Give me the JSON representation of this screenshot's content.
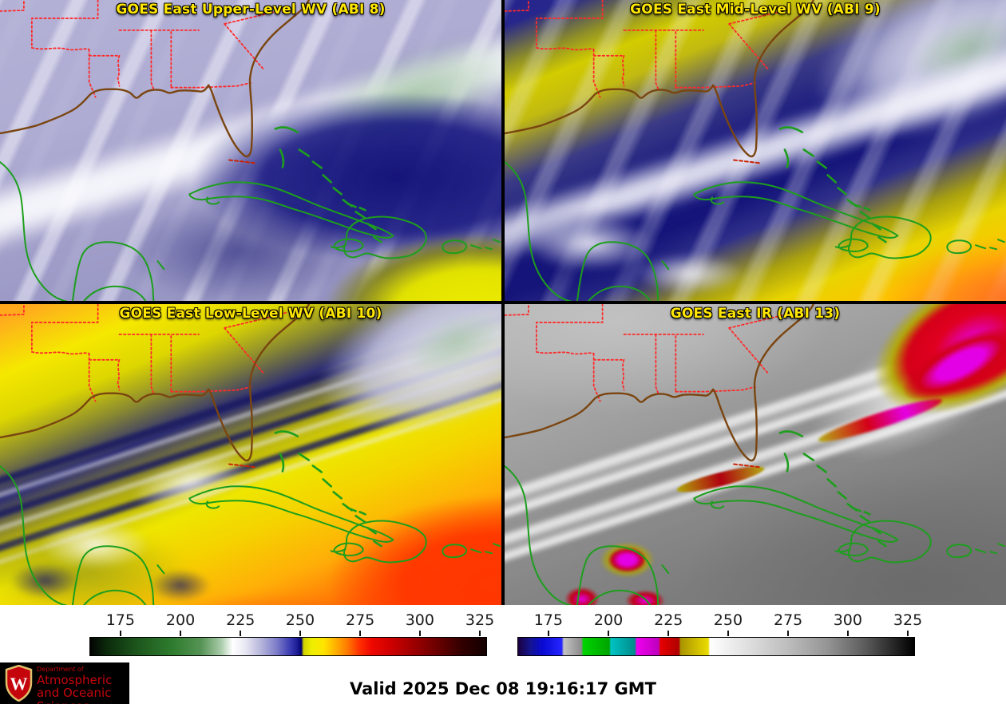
{
  "panels": [
    {
      "title": "GOES East Upper-Level WV (ABI 8)"
    },
    {
      "title": "GOES East Mid-Level WV (ABI 9)"
    },
    {
      "title": "GOES East Low-Level WV (ABI 10)"
    },
    {
      "title": "GOES East IR (ABI 13)"
    }
  ],
  "colorbars": [
    {
      "id": "wv",
      "tick_labels": [
        "175",
        "200",
        "225",
        "250",
        "275",
        "300",
        "325"
      ],
      "tick_pcts": [
        7.8,
        22.9,
        38.0,
        53.0,
        68.1,
        83.1,
        98.2
      ],
      "range_kelvin": [
        162,
        328
      ],
      "gradient": [
        {
          "pct": 0,
          "color": "#030303"
        },
        {
          "pct": 4,
          "color": "#0b290b"
        },
        {
          "pct": 12,
          "color": "#1d571d"
        },
        {
          "pct": 21,
          "color": "#2f7d2f"
        },
        {
          "pct": 28,
          "color": "#569356"
        },
        {
          "pct": 33,
          "color": "#a8cba8"
        },
        {
          "pct": 36,
          "color": "#ffffff"
        },
        {
          "pct": 39,
          "color": "#e9e9f4"
        },
        {
          "pct": 43,
          "color": "#b7b7dc"
        },
        {
          "pct": 47,
          "color": "#7e7eca"
        },
        {
          "pct": 50.5,
          "color": "#3b3bb3"
        },
        {
          "pct": 52.5,
          "color": "#17178f"
        },
        {
          "pct": 53.3,
          "color": "#00006b"
        },
        {
          "pct": 53.9,
          "color": "#d2d200"
        },
        {
          "pct": 56,
          "color": "#efef00"
        },
        {
          "pct": 59,
          "color": "#ffe400"
        },
        {
          "pct": 62,
          "color": "#ffb000"
        },
        {
          "pct": 65,
          "color": "#ff7800"
        },
        {
          "pct": 68,
          "color": "#ff3000"
        },
        {
          "pct": 71,
          "color": "#ef0800"
        },
        {
          "pct": 76,
          "color": "#cd0000"
        },
        {
          "pct": 82,
          "color": "#9b0000"
        },
        {
          "pct": 88,
          "color": "#670000"
        },
        {
          "pct": 94,
          "color": "#310000"
        },
        {
          "pct": 100,
          "color": "#130000"
        }
      ]
    },
    {
      "id": "ir",
      "tick_labels": [
        "175",
        "200",
        "225",
        "250",
        "275",
        "300",
        "325"
      ],
      "tick_pcts": [
        7.8,
        22.9,
        38.0,
        53.0,
        68.1,
        83.1,
        98.2
      ],
      "range_kelvin": [
        162,
        328
      ],
      "gradient": [
        {
          "pct": 0,
          "color": "#1b0040"
        },
        {
          "pct": 3,
          "color": "#15158d"
        },
        {
          "pct": 6,
          "color": "#0909d1"
        },
        {
          "pct": 11,
          "color": "#2525ff"
        },
        {
          "pct": 11.5,
          "color": "#c3c3c3"
        },
        {
          "pct": 16,
          "color": "#8b8b8b"
        },
        {
          "pct": 16.4,
          "color": "#00d400"
        },
        {
          "pct": 23,
          "color": "#00a500"
        },
        {
          "pct": 23.4,
          "color": "#00c3c3"
        },
        {
          "pct": 29.5,
          "color": "#008b8b"
        },
        {
          "pct": 29.9,
          "color": "#ef00ef"
        },
        {
          "pct": 35.5,
          "color": "#bd00bd"
        },
        {
          "pct": 35.9,
          "color": "#e70000"
        },
        {
          "pct": 40.6,
          "color": "#af0000"
        },
        {
          "pct": 41,
          "color": "#a99300"
        },
        {
          "pct": 48,
          "color": "#ebdc00"
        },
        {
          "pct": 48.4,
          "color": "#ffffff"
        },
        {
          "pct": 58,
          "color": "#dfdfdf"
        },
        {
          "pct": 68,
          "color": "#bdbdbd"
        },
        {
          "pct": 78,
          "color": "#959595"
        },
        {
          "pct": 88,
          "color": "#595959"
        },
        {
          "pct": 100,
          "color": "#000000"
        }
      ]
    }
  ],
  "footer": {
    "valid": "Valid 2025 Dec 08 19:16:17 GMT",
    "logo_lines": [
      "Department of",
      "Atmospheric",
      "and Oceanic Sciences"
    ],
    "logo_letter": "W"
  },
  "colors": {
    "title": "#ffe600",
    "state_border": "#ff2a2a",
    "us_coast": "#7a4510",
    "carib_coast": "#1d9e1d",
    "keys": "#cc2200",
    "logo_text": "#c5050c",
    "logo_bg": "#000000"
  }
}
